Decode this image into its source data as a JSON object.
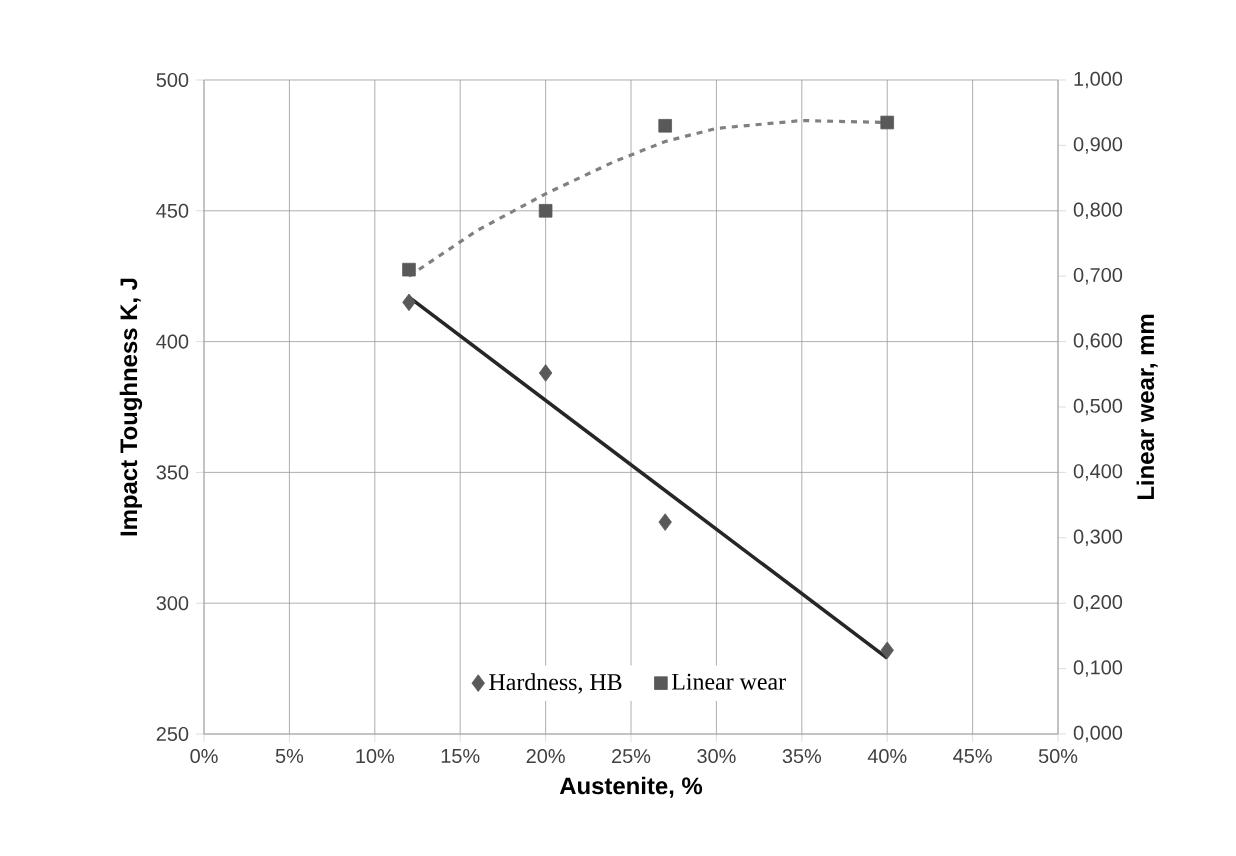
{
  "chart_data": {
    "type": "scatter",
    "xlabel": "Austenite, %",
    "ylabel": "Impact Toughness K, J",
    "y2label": "Linear wear, mm",
    "xlim": [
      0,
      50
    ],
    "xticks": [
      {
        "value": 0,
        "label": "0%"
      },
      {
        "value": 5,
        "label": "5%"
      },
      {
        "value": 10,
        "label": "10%"
      },
      {
        "value": 15,
        "label": "15%"
      },
      {
        "value": 20,
        "label": "20%"
      },
      {
        "value": 25,
        "label": "25%"
      },
      {
        "value": 30,
        "label": "30%"
      },
      {
        "value": 35,
        "label": "35%"
      },
      {
        "value": 40,
        "label": "40%"
      },
      {
        "value": 45,
        "label": "45%"
      },
      {
        "value": 50,
        "label": "50%"
      }
    ],
    "ylim": [
      250,
      500
    ],
    "yticks": [
      250,
      300,
      350,
      400,
      450,
      500
    ],
    "y2lim": [
      0,
      1
    ],
    "y2ticks": [
      {
        "value": 0,
        "label": "0,000"
      },
      {
        "value": 0.1,
        "label": "0,100"
      },
      {
        "value": 0.2,
        "label": "0,200"
      },
      {
        "value": 0.3,
        "label": "0,300"
      },
      {
        "value": 0.4,
        "label": "0,400"
      },
      {
        "value": 0.5,
        "label": "0,500"
      },
      {
        "value": 0.6,
        "label": "0,600"
      },
      {
        "value": 0.7,
        "label": "0,700"
      },
      {
        "value": 0.8,
        "label": "0,800"
      },
      {
        "value": 0.9,
        "label": "0,900"
      },
      {
        "value": 1,
        "label": "1,000"
      }
    ],
    "grid": true,
    "legend": "bottom",
    "series": [
      {
        "name": "Hardness, HB",
        "marker": "diamond",
        "color": "#595959",
        "x": [
          12,
          20,
          27,
          40
        ],
        "values": [
          415,
          388,
          331,
          282
        ]
      },
      {
        "type": "line",
        "marker": "none",
        "line_style": "solid",
        "color": "#262626",
        "x": [
          12,
          40
        ],
        "values": [
          417,
          279
        ]
      },
      {
        "name": "Linear wear",
        "axis": "y2",
        "marker": "square",
        "color": "#595959",
        "x": [
          12,
          20,
          27,
          40
        ],
        "values": [
          0.71,
          0.8,
          0.93,
          0.935
        ]
      },
      {
        "type": "line",
        "axis": "y2",
        "marker": "none",
        "line_style": "dashed",
        "color": "#808080",
        "x": [
          12,
          16,
          20,
          24,
          27,
          30,
          35,
          40
        ],
        "values": [
          0.7,
          0.77,
          0.826,
          0.875,
          0.906,
          0.926,
          0.938,
          0.935
        ]
      }
    ]
  }
}
